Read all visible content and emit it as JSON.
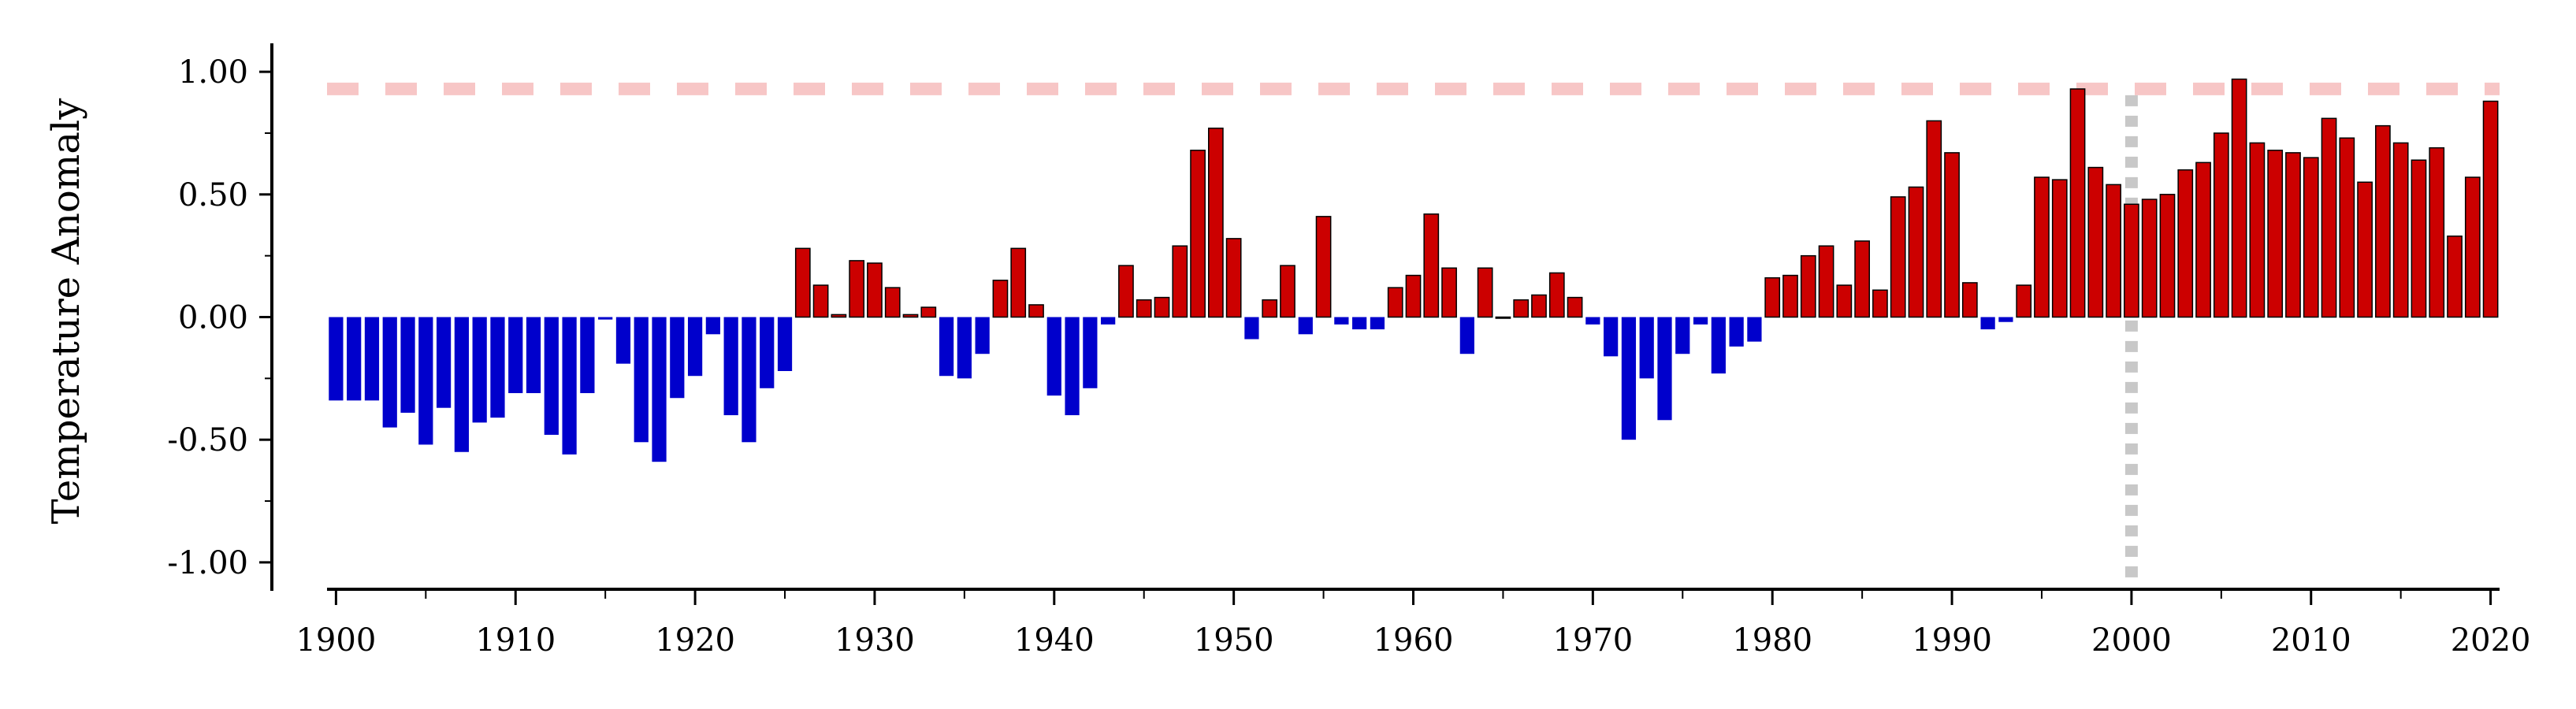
{
  "chart_data": {
    "type": "bar",
    "title": "",
    "xlabel": "",
    "ylabel": "Temperature Anomaly",
    "xlim": [
      1899.5,
      2020.5
    ],
    "ylim": [
      -1.1,
      1.1
    ],
    "xticks": [
      "1900",
      "1910",
      "1920",
      "1930",
      "1940",
      "1950",
      "1960",
      "1970",
      "1980",
      "1990",
      "2000",
      "2010",
      "2020"
    ],
    "yticks": [
      "1.00",
      "0.50",
      "0.00",
      "-0.50",
      "-1.00"
    ],
    "grid": false,
    "legend": "none",
    "colors": {
      "positive": "#cc0000",
      "negative": "#0000cc",
      "bar_edge": "#000000",
      "reference_line": "#f7c6c6",
      "marker_line": "#c8c8c8"
    },
    "reference_line": {
      "y": 0.93,
      "style": "dashed"
    },
    "marker_line": {
      "x": 2000,
      "style": "dotted"
    },
    "x": [
      1900,
      1901,
      1902,
      1903,
      1904,
      1905,
      1906,
      1907,
      1908,
      1909,
      1910,
      1911,
      1912,
      1913,
      1914,
      1915,
      1916,
      1917,
      1918,
      1919,
      1920,
      1921,
      1922,
      1923,
      1924,
      1925,
      1926,
      1927,
      1928,
      1929,
      1930,
      1931,
      1932,
      1933,
      1934,
      1935,
      1936,
      1937,
      1938,
      1939,
      1940,
      1941,
      1942,
      1943,
      1944,
      1945,
      1946,
      1947,
      1948,
      1949,
      1950,
      1951,
      1952,
      1953,
      1954,
      1955,
      1956,
      1957,
      1958,
      1959,
      1960,
      1961,
      1962,
      1963,
      1964,
      1965,
      1966,
      1967,
      1968,
      1969,
      1970,
      1971,
      1972,
      1973,
      1974,
      1975,
      1976,
      1977,
      1978,
      1979,
      1980,
      1981,
      1982,
      1983,
      1984,
      1985,
      1986,
      1987,
      1988,
      1989,
      1990,
      1991,
      1992,
      1993,
      1994,
      1995,
      1996,
      1997,
      1998,
      1999,
      2000,
      2001,
      2002,
      2003,
      2004,
      2005,
      2006,
      2007,
      2008,
      2009,
      2010,
      2011,
      2012,
      2013,
      2014,
      2015,
      2016,
      2017,
      2018,
      2019,
      2020
    ],
    "values": [
      -0.34,
      -0.34,
      -0.34,
      -0.45,
      -0.39,
      -0.52,
      -0.37,
      -0.55,
      -0.43,
      -0.41,
      -0.31,
      -0.31,
      -0.48,
      -0.56,
      -0.31,
      -0.01,
      -0.19,
      -0.51,
      -0.59,
      -0.33,
      -0.24,
      -0.07,
      -0.4,
      -0.51,
      -0.29,
      -0.22,
      0.28,
      0.13,
      0.01,
      0.23,
      0.22,
      0.12,
      0.01,
      0.04,
      -0.24,
      -0.25,
      -0.15,
      0.15,
      0.28,
      0.05,
      -0.32,
      -0.4,
      -0.29,
      -0.03,
      0.21,
      0.07,
      0.08,
      0.29,
      0.68,
      0.77,
      0.32,
      -0.09,
      0.07,
      0.21,
      -0.07,
      0.41,
      -0.03,
      -0.05,
      -0.05,
      0.12,
      0.17,
      0.42,
      0.2,
      -0.15,
      0.2,
      0.0,
      0.07,
      0.09,
      0.18,
      0.08,
      -0.03,
      -0.16,
      -0.5,
      -0.25,
      -0.42,
      -0.15,
      -0.03,
      -0.23,
      -0.12,
      -0.1,
      0.16,
      0.17,
      0.25,
      0.29,
      0.13,
      0.31,
      0.11,
      0.49,
      0.53,
      0.8,
      0.67,
      0.14,
      -0.05,
      -0.02,
      0.13,
      0.57,
      0.56,
      0.93,
      0.61,
      0.54,
      0.46,
      0.48,
      0.5,
      0.6,
      0.63,
      0.75,
      0.97,
      0.71,
      0.68,
      0.67,
      0.65,
      0.81,
      0.73,
      0.55,
      0.78,
      0.71,
      0.64,
      0.69,
      0.33,
      0.57,
      0.88
    ]
  }
}
